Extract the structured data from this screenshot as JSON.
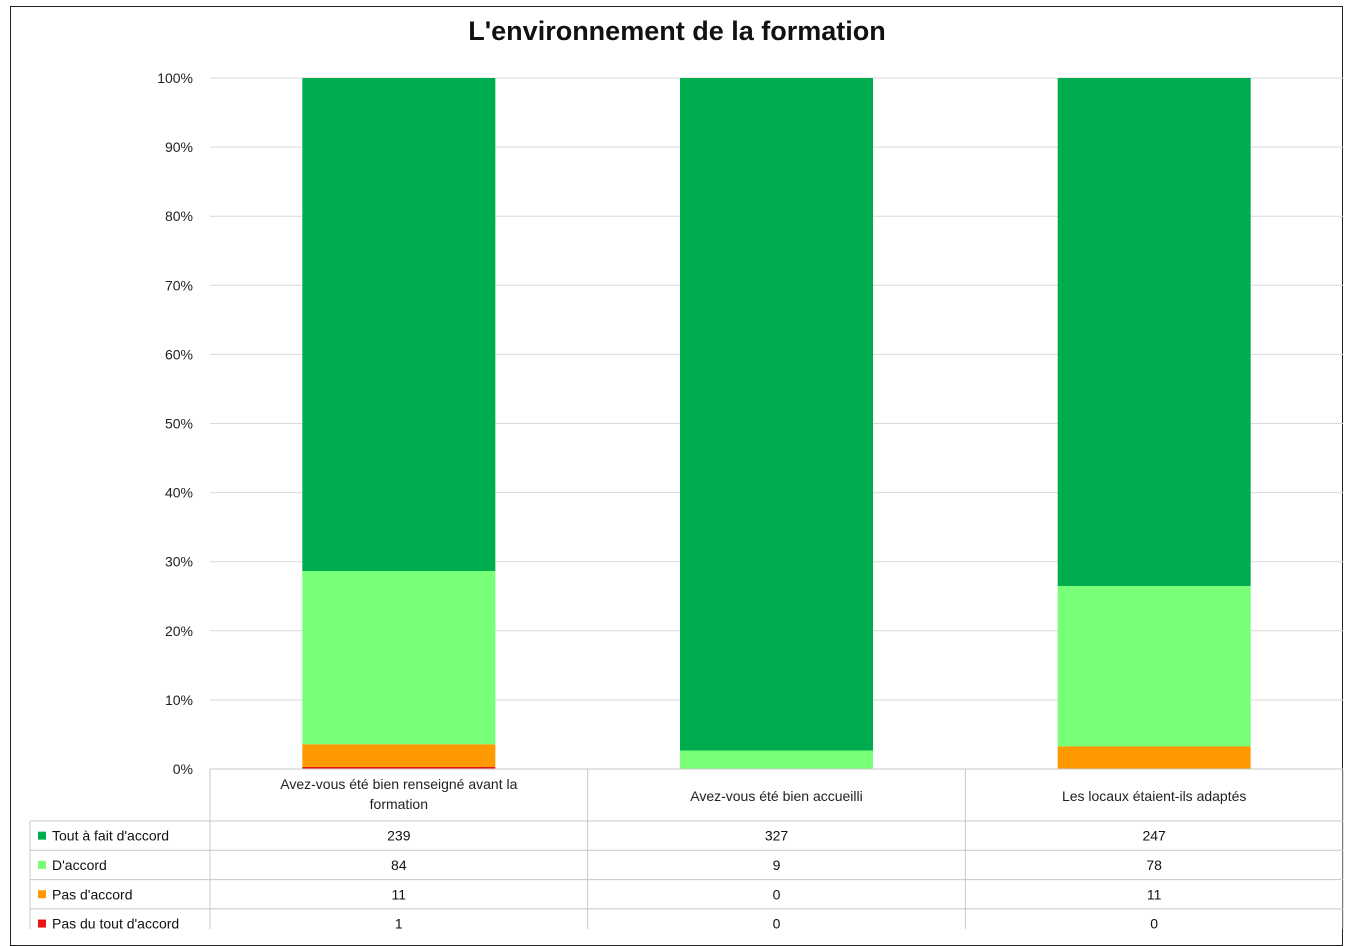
{
  "chart_data": {
    "type": "bar",
    "stacked": true,
    "normalized": true,
    "title": "L'environnement de la formation",
    "categories": [
      [
        "Avez-vous été bien renseigné avant la",
        "formation"
      ],
      [
        "Avez-vous été bien accueilli"
      ],
      [
        "Les locaux étaient-ils adaptés"
      ]
    ],
    "yticks": [
      "0%",
      "10%",
      "20%",
      "30%",
      "40%",
      "50%",
      "60%",
      "70%",
      "80%",
      "90%",
      "100%"
    ],
    "ylim": [
      0,
      100
    ],
    "grid": true,
    "legend": "data-table-left",
    "series": [
      {
        "name": "Pas du tout d'accord",
        "color": "#ee1111",
        "values": [
          1,
          0,
          0
        ],
        "labels": [
          "1",
          "0",
          "0"
        ]
      },
      {
        "name": "Pas d'accord",
        "color": "#ff9900",
        "values": [
          11,
          0,
          11
        ],
        "labels": [
          "11",
          "0",
          "11"
        ]
      },
      {
        "name": "D'accord",
        "color": "#77ff77",
        "values": [
          84,
          9,
          78
        ],
        "labels": [
          "84",
          "9",
          "78"
        ]
      },
      {
        "name": "Tout à fait d'accord",
        "color": "#00ad4e",
        "values": [
          239,
          327,
          247
        ],
        "labels": [
          "239",
          "327",
          "247"
        ]
      }
    ],
    "table_order": [
      3,
      2,
      1,
      0
    ]
  }
}
